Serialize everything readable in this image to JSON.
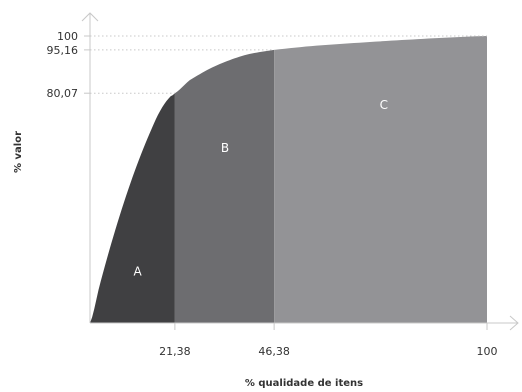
{
  "chart_data": {
    "type": "area",
    "title": "",
    "xlabel": "% qualidade de itens",
    "ylabel": "% valor",
    "xlim": [
      0,
      100
    ],
    "ylim": [
      0,
      100
    ],
    "grid": false,
    "x_ticks": [
      "21,38",
      "46,38",
      "100"
    ],
    "y_ticks": [
      "100",
      "95,16",
      "80,07"
    ],
    "x_tick_values": [
      21.38,
      46.38,
      100
    ],
    "y_tick_values": [
      100,
      95.16,
      80.07
    ],
    "curve": {
      "x": [
        0,
        2.5,
        5,
        7.5,
        10,
        12.5,
        15,
        17.5,
        20,
        21.38,
        25,
        30,
        35,
        40,
        46.38,
        55,
        65,
        75,
        85,
        100
      ],
      "y": [
        0,
        13.5,
        26,
        37.5,
        48,
        57.5,
        66,
        73.5,
        78.5,
        80.07,
        84.5,
        88.5,
        91.5,
        93.7,
        95.16,
        96.4,
        97.4,
        98.3,
        99.1,
        100
      ]
    },
    "regions": [
      {
        "name": "A",
        "x_range": [
          0,
          21.38
        ],
        "y_end": 80.07,
        "color": "#404042"
      },
      {
        "name": "B",
        "x_range": [
          21.38,
          46.38
        ],
        "y_end": 95.16,
        "color": "#6d6d70"
      },
      {
        "name": "C",
        "x_range": [
          46.38,
          100
        ],
        "y_end": 100,
        "color": "#939396"
      }
    ],
    "axis_color": "#c8c8c8",
    "reference_line_color": "#c8c8c8"
  }
}
